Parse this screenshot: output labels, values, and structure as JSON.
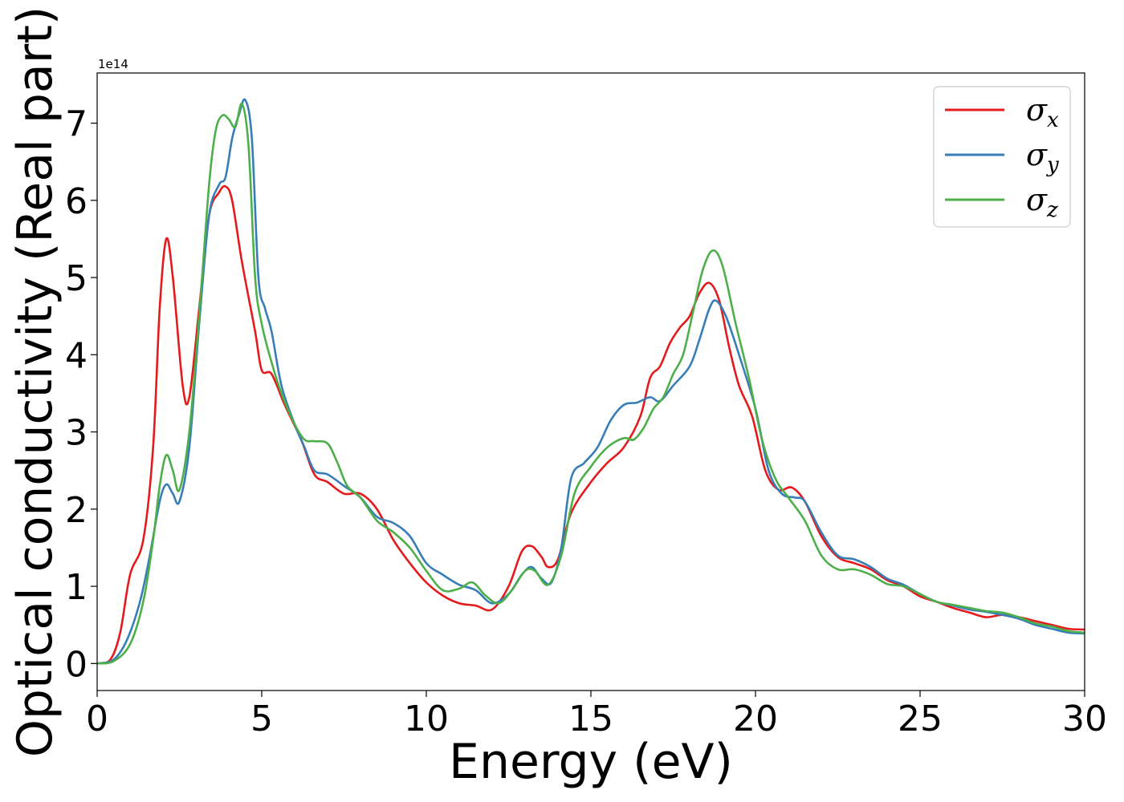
{
  "chart_data": {
    "type": "line",
    "xlabel": "Energy (eV)",
    "ylabel": "Optical conductivity (Real part)",
    "offset_label": "1e14",
    "scale": 100000000000000.0,
    "xlim": [
      0,
      30
    ],
    "ylim": [
      -0.35,
      7.65
    ],
    "xticks": [
      0,
      5,
      10,
      15,
      20,
      25,
      30
    ],
    "yticks": [
      0,
      1,
      2,
      3,
      4,
      5,
      6,
      7
    ],
    "grid": false,
    "legend_position": "top-right",
    "series": [
      {
        "name": "σx",
        "symbol": "σ",
        "subscript": "x",
        "color": "#e41a1c",
        "points": [
          [
            0,
            0
          ],
          [
            0.4,
            0.05
          ],
          [
            0.7,
            0.4
          ],
          [
            1.0,
            1.15
          ],
          [
            1.4,
            1.6
          ],
          [
            1.7,
            2.8
          ],
          [
            1.9,
            4.6
          ],
          [
            2.1,
            5.5
          ],
          [
            2.3,
            5.0
          ],
          [
            2.6,
            3.6
          ],
          [
            2.8,
            3.45
          ],
          [
            3.1,
            4.6
          ],
          [
            3.4,
            5.8
          ],
          [
            3.7,
            6.1
          ],
          [
            3.9,
            6.18
          ],
          [
            4.1,
            6.0
          ],
          [
            4.4,
            5.2
          ],
          [
            4.8,
            4.3
          ],
          [
            5.0,
            3.8
          ],
          [
            5.3,
            3.75
          ],
          [
            5.7,
            3.35
          ],
          [
            6.2,
            2.9
          ],
          [
            6.6,
            2.45
          ],
          [
            7.0,
            2.35
          ],
          [
            7.5,
            2.2
          ],
          [
            8.0,
            2.2
          ],
          [
            8.5,
            2.0
          ],
          [
            9.0,
            1.6
          ],
          [
            9.5,
            1.3
          ],
          [
            10.0,
            1.05
          ],
          [
            10.5,
            0.88
          ],
          [
            11.0,
            0.78
          ],
          [
            11.5,
            0.75
          ],
          [
            12.0,
            0.7
          ],
          [
            12.5,
            1.0
          ],
          [
            12.9,
            1.45
          ],
          [
            13.2,
            1.52
          ],
          [
            13.5,
            1.38
          ],
          [
            13.7,
            1.25
          ],
          [
            14.0,
            1.35
          ],
          [
            14.4,
            1.95
          ],
          [
            15.0,
            2.35
          ],
          [
            15.5,
            2.6
          ],
          [
            16.0,
            2.8
          ],
          [
            16.5,
            3.2
          ],
          [
            16.8,
            3.7
          ],
          [
            17.1,
            3.85
          ],
          [
            17.4,
            4.15
          ],
          [
            17.7,
            4.35
          ],
          [
            18.0,
            4.5
          ],
          [
            18.3,
            4.8
          ],
          [
            18.6,
            4.93
          ],
          [
            18.9,
            4.7
          ],
          [
            19.2,
            4.1
          ],
          [
            19.5,
            3.6
          ],
          [
            19.9,
            3.2
          ],
          [
            20.3,
            2.5
          ],
          [
            20.7,
            2.25
          ],
          [
            21.1,
            2.28
          ],
          [
            21.5,
            2.1
          ],
          [
            22.0,
            1.65
          ],
          [
            22.5,
            1.38
          ],
          [
            23.0,
            1.3
          ],
          [
            23.5,
            1.22
          ],
          [
            24.0,
            1.08
          ],
          [
            24.5,
            1.0
          ],
          [
            25.0,
            0.87
          ],
          [
            25.5,
            0.8
          ],
          [
            26.0,
            0.72
          ],
          [
            26.5,
            0.66
          ],
          [
            27.0,
            0.6
          ],
          [
            27.5,
            0.63
          ],
          [
            28.0,
            0.6
          ],
          [
            28.5,
            0.55
          ],
          [
            29.0,
            0.5
          ],
          [
            29.5,
            0.45
          ],
          [
            30.0,
            0.44
          ]
        ]
      },
      {
        "name": "σy",
        "symbol": "σ",
        "subscript": "y",
        "color": "#377eb8",
        "points": [
          [
            0,
            0
          ],
          [
            0.5,
            0.05
          ],
          [
            0.9,
            0.3
          ],
          [
            1.3,
            0.8
          ],
          [
            1.6,
            1.4
          ],
          [
            1.9,
            2.1
          ],
          [
            2.1,
            2.32
          ],
          [
            2.3,
            2.2
          ],
          [
            2.5,
            2.1
          ],
          [
            2.8,
            2.8
          ],
          [
            3.1,
            4.4
          ],
          [
            3.4,
            5.8
          ],
          [
            3.7,
            6.2
          ],
          [
            3.9,
            6.3
          ],
          [
            4.1,
            6.8
          ],
          [
            4.3,
            7.1
          ],
          [
            4.5,
            7.3
          ],
          [
            4.7,
            6.8
          ],
          [
            4.9,
            5.0
          ],
          [
            5.1,
            4.6
          ],
          [
            5.3,
            4.3
          ],
          [
            5.6,
            3.6
          ],
          [
            6.0,
            3.1
          ],
          [
            6.3,
            2.8
          ],
          [
            6.6,
            2.5
          ],
          [
            7.0,
            2.45
          ],
          [
            7.5,
            2.3
          ],
          [
            8.0,
            2.15
          ],
          [
            8.5,
            1.9
          ],
          [
            9.0,
            1.82
          ],
          [
            9.5,
            1.65
          ],
          [
            10.0,
            1.3
          ],
          [
            10.5,
            1.15
          ],
          [
            11.0,
            1.02
          ],
          [
            11.5,
            0.95
          ],
          [
            12.0,
            0.78
          ],
          [
            12.5,
            0.9
          ],
          [
            12.9,
            1.15
          ],
          [
            13.2,
            1.25
          ],
          [
            13.5,
            1.1
          ],
          [
            13.8,
            1.05
          ],
          [
            14.1,
            1.5
          ],
          [
            14.4,
            2.4
          ],
          [
            14.8,
            2.6
          ],
          [
            15.2,
            2.8
          ],
          [
            15.6,
            3.15
          ],
          [
            16.0,
            3.35
          ],
          [
            16.4,
            3.38
          ],
          [
            16.8,
            3.45
          ],
          [
            17.1,
            3.4
          ],
          [
            17.5,
            3.6
          ],
          [
            18.0,
            3.85
          ],
          [
            18.3,
            4.2
          ],
          [
            18.6,
            4.6
          ],
          [
            18.8,
            4.7
          ],
          [
            19.1,
            4.5
          ],
          [
            19.5,
            4.0
          ],
          [
            20.0,
            3.3
          ],
          [
            20.4,
            2.5
          ],
          [
            20.8,
            2.2
          ],
          [
            21.2,
            2.15
          ],
          [
            21.5,
            2.1
          ],
          [
            22.0,
            1.7
          ],
          [
            22.5,
            1.4
          ],
          [
            23.0,
            1.35
          ],
          [
            23.5,
            1.25
          ],
          [
            24.0,
            1.1
          ],
          [
            24.5,
            1.02
          ],
          [
            25.0,
            0.9
          ],
          [
            25.5,
            0.8
          ],
          [
            26.0,
            0.75
          ],
          [
            26.5,
            0.7
          ],
          [
            27.0,
            0.67
          ],
          [
            27.5,
            0.63
          ],
          [
            28.0,
            0.58
          ],
          [
            28.5,
            0.5
          ],
          [
            29.0,
            0.45
          ],
          [
            29.5,
            0.4
          ],
          [
            30.0,
            0.39
          ]
        ]
      },
      {
        "name": "σz",
        "symbol": "σ",
        "subscript": "z",
        "color": "#4daf4a",
        "points": [
          [
            0,
            0
          ],
          [
            0.5,
            0.03
          ],
          [
            1.0,
            0.25
          ],
          [
            1.4,
            0.8
          ],
          [
            1.7,
            1.6
          ],
          [
            1.9,
            2.3
          ],
          [
            2.1,
            2.7
          ],
          [
            2.3,
            2.5
          ],
          [
            2.5,
            2.25
          ],
          [
            2.8,
            3.0
          ],
          [
            3.1,
            4.5
          ],
          [
            3.4,
            6.2
          ],
          [
            3.6,
            6.9
          ],
          [
            3.8,
            7.1
          ],
          [
            4.0,
            7.05
          ],
          [
            4.2,
            6.95
          ],
          [
            4.4,
            7.25
          ],
          [
            4.6,
            6.7
          ],
          [
            4.8,
            5.0
          ],
          [
            5.0,
            4.4
          ],
          [
            5.3,
            3.9
          ],
          [
            5.6,
            3.5
          ],
          [
            6.0,
            3.1
          ],
          [
            6.3,
            2.9
          ],
          [
            6.6,
            2.88
          ],
          [
            7.0,
            2.85
          ],
          [
            7.3,
            2.6
          ],
          [
            7.6,
            2.3
          ],
          [
            8.0,
            2.15
          ],
          [
            8.5,
            1.85
          ],
          [
            9.0,
            1.7
          ],
          [
            9.5,
            1.5
          ],
          [
            10.0,
            1.2
          ],
          [
            10.5,
            0.95
          ],
          [
            11.0,
            0.97
          ],
          [
            11.4,
            1.05
          ],
          [
            11.8,
            0.88
          ],
          [
            12.2,
            0.78
          ],
          [
            12.6,
            0.95
          ],
          [
            13.0,
            1.2
          ],
          [
            13.3,
            1.2
          ],
          [
            13.7,
            1.02
          ],
          [
            14.1,
            1.4
          ],
          [
            14.5,
            2.2
          ],
          [
            15.0,
            2.55
          ],
          [
            15.5,
            2.8
          ],
          [
            16.0,
            2.92
          ],
          [
            16.3,
            2.9
          ],
          [
            16.6,
            3.05
          ],
          [
            16.9,
            3.3
          ],
          [
            17.2,
            3.45
          ],
          [
            17.5,
            3.75
          ],
          [
            17.8,
            4.0
          ],
          [
            18.1,
            4.55
          ],
          [
            18.4,
            5.1
          ],
          [
            18.7,
            5.35
          ],
          [
            19.0,
            5.15
          ],
          [
            19.4,
            4.4
          ],
          [
            19.8,
            3.7
          ],
          [
            20.2,
            2.9
          ],
          [
            20.6,
            2.4
          ],
          [
            21.0,
            2.15
          ],
          [
            21.5,
            1.85
          ],
          [
            22.0,
            1.4
          ],
          [
            22.5,
            1.22
          ],
          [
            23.0,
            1.22
          ],
          [
            23.5,
            1.15
          ],
          [
            24.0,
            1.03
          ],
          [
            24.5,
            1.0
          ],
          [
            25.0,
            0.9
          ],
          [
            25.5,
            0.8
          ],
          [
            26.0,
            0.76
          ],
          [
            26.5,
            0.72
          ],
          [
            27.0,
            0.68
          ],
          [
            27.5,
            0.66
          ],
          [
            28.0,
            0.6
          ],
          [
            28.5,
            0.52
          ],
          [
            29.0,
            0.48
          ],
          [
            29.5,
            0.42
          ],
          [
            30.0,
            0.4
          ]
        ]
      }
    ]
  }
}
